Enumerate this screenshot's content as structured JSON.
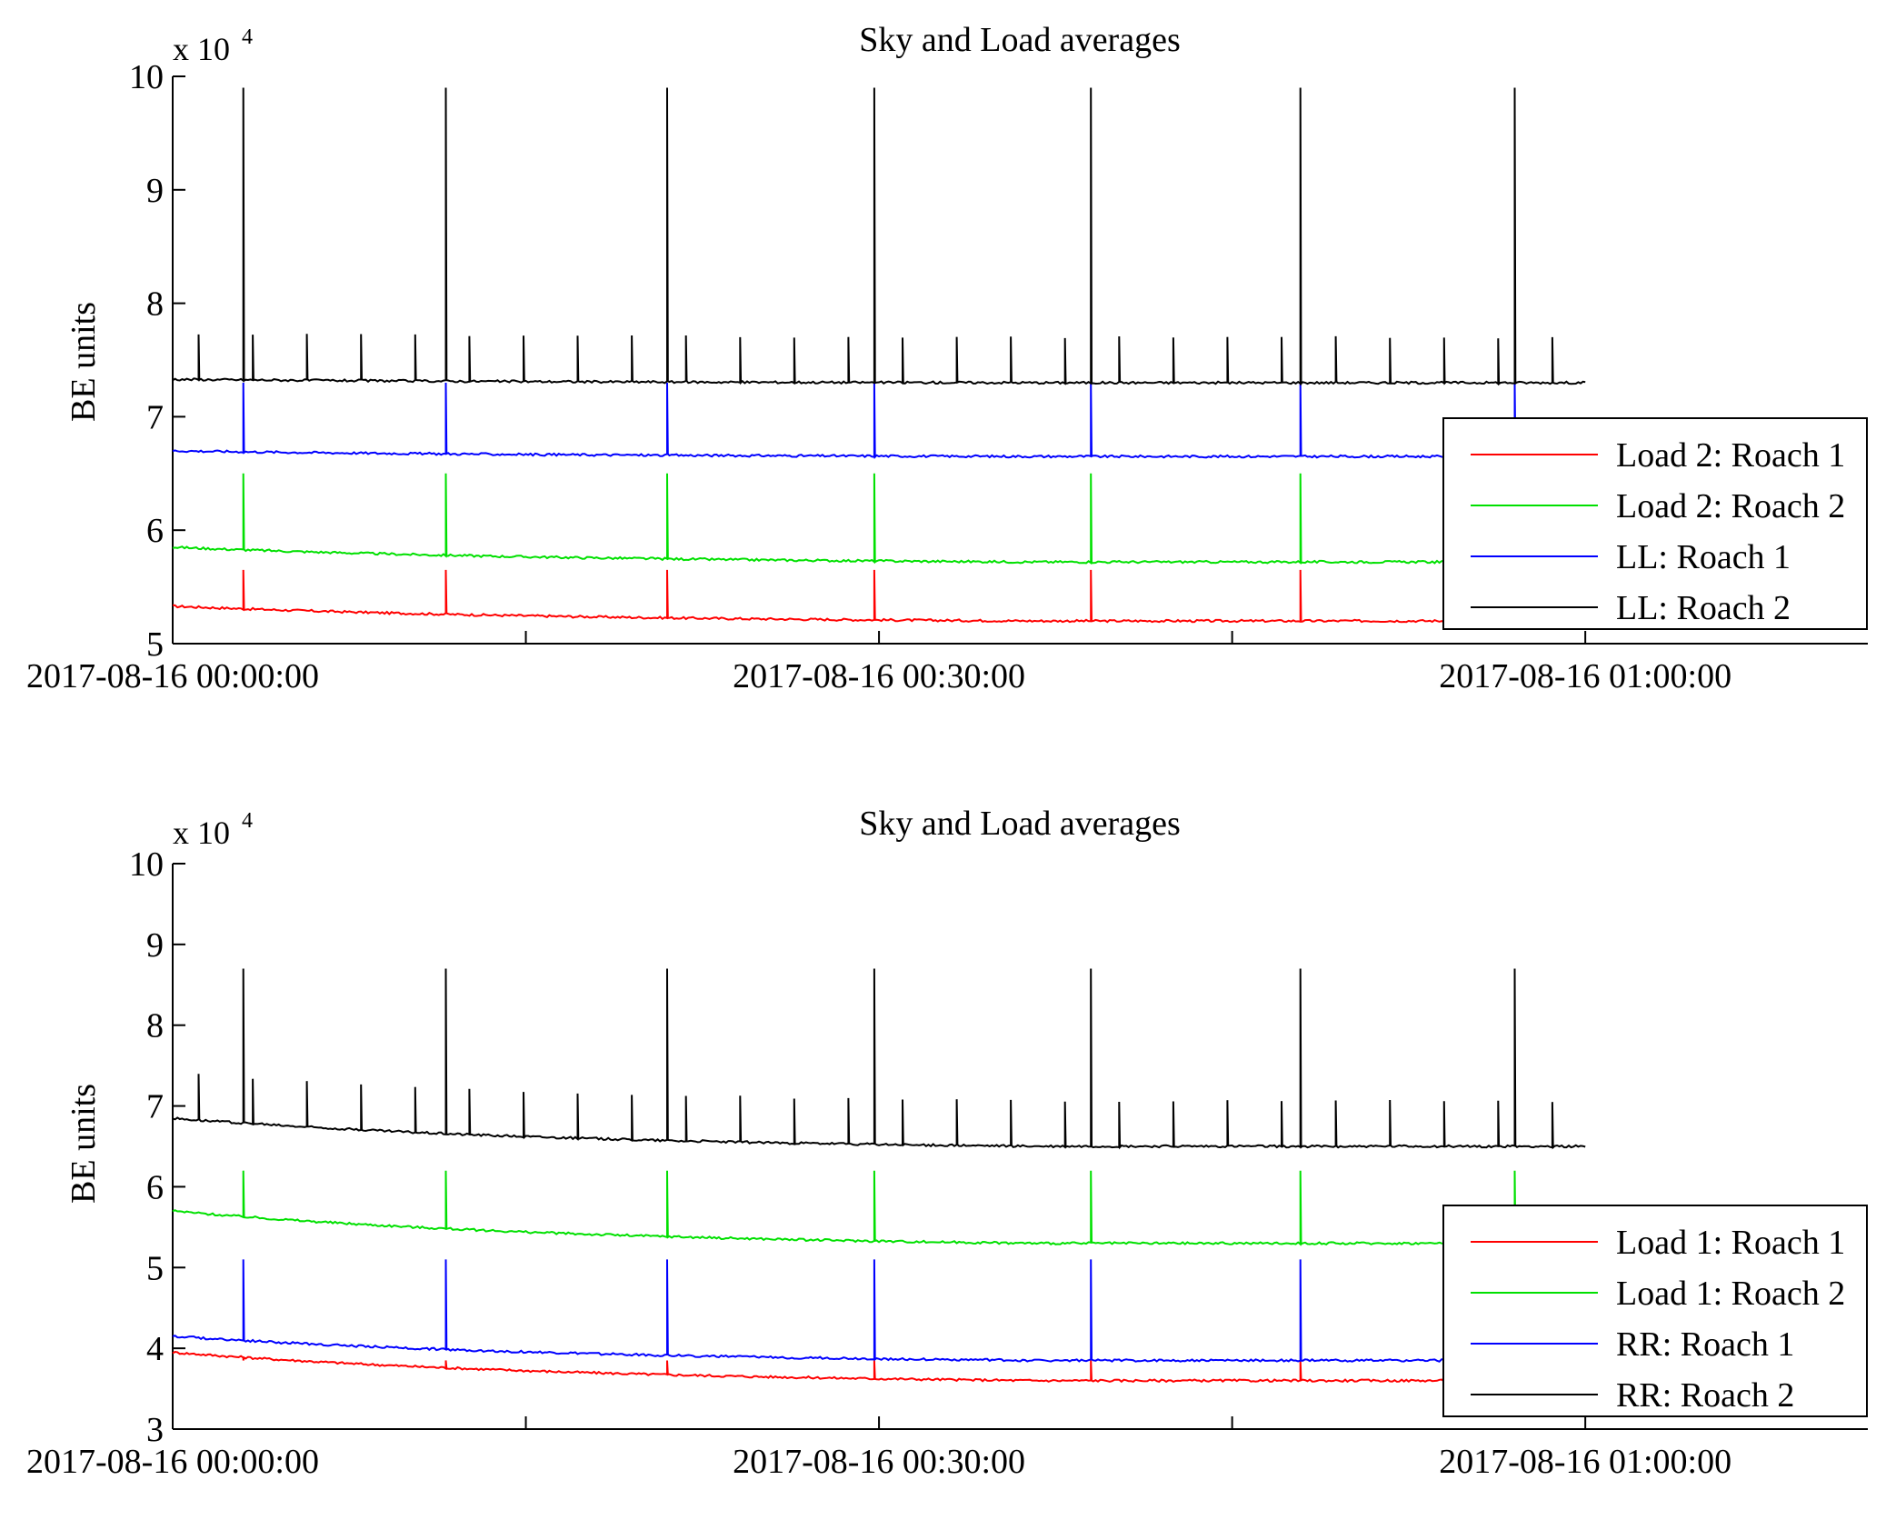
{
  "chart_data": [
    {
      "type": "line",
      "title": "Sky and Load averages",
      "ylabel": "BE units",
      "y_multiplier": "x 10",
      "y_multiplier_exp": "4",
      "xlim": [
        "2017-08-16 00:00:00",
        "2017-08-16 01:12:00"
      ],
      "ylim": [
        5,
        10
      ],
      "yticks": [
        "5",
        "6",
        "7",
        "8",
        "9",
        "10"
      ],
      "xticks": [
        "2017-08-16 00:00:00",
        "2017-08-16 00:30:00",
        "2017-08-16 01:00:00"
      ],
      "grid": false,
      "legend_position": "right",
      "series": [
        {
          "name": "Load 2: Roach 1",
          "color": "#ff0000",
          "start": 5.33,
          "end": 5.2,
          "spike": 5.65,
          "x_end_min": 60
        },
        {
          "name": "Load 2: Roach 2",
          "color": "#00e000",
          "start": 5.85,
          "end": 5.72,
          "spike": 6.5,
          "x_end_min": 60
        },
        {
          "name": "LL: Roach 1",
          "color": "#0000ff",
          "start": 6.7,
          "end": 6.65,
          "spike": 7.3,
          "x_end_min": 60
        },
        {
          "name": "LL: Roach 2",
          "color": "#000000",
          "start": 7.33,
          "end": 7.3,
          "spike": 9.9,
          "x_end_min": 60
        }
      ]
    },
    {
      "type": "line",
      "title": "Sky and Load averages",
      "ylabel": "BE units",
      "y_multiplier": "x 10",
      "y_multiplier_exp": "4",
      "xlim": [
        "2017-08-16 00:00:00",
        "2017-08-16 01:12:00"
      ],
      "ylim": [
        3,
        10
      ],
      "yticks": [
        "3",
        "4",
        "5",
        "6",
        "7",
        "8",
        "9",
        "10"
      ],
      "xticks": [
        "2017-08-16 00:00:00",
        "2017-08-16 00:30:00",
        "2017-08-16 01:00:00"
      ],
      "grid": false,
      "legend_position": "right",
      "series": [
        {
          "name": "Load 1: Roach 1",
          "color": "#ff0000",
          "start": 3.95,
          "end": 3.6,
          "spike": 3.85,
          "x_end_min": 60
        },
        {
          "name": "Load 1: Roach 2",
          "color": "#00e000",
          "start": 5.7,
          "end": 5.3,
          "spike": 6.2,
          "x_end_min": 60
        },
        {
          "name": "RR: Roach 1",
          "color": "#0000ff",
          "start": 4.15,
          "end": 3.85,
          "spike": 5.1,
          "x_end_min": 60
        },
        {
          "name": "RR: Roach 2",
          "color": "#000000",
          "start": 6.85,
          "end": 6.5,
          "spike": 8.7,
          "x_end_min": 60
        }
      ]
    }
  ]
}
